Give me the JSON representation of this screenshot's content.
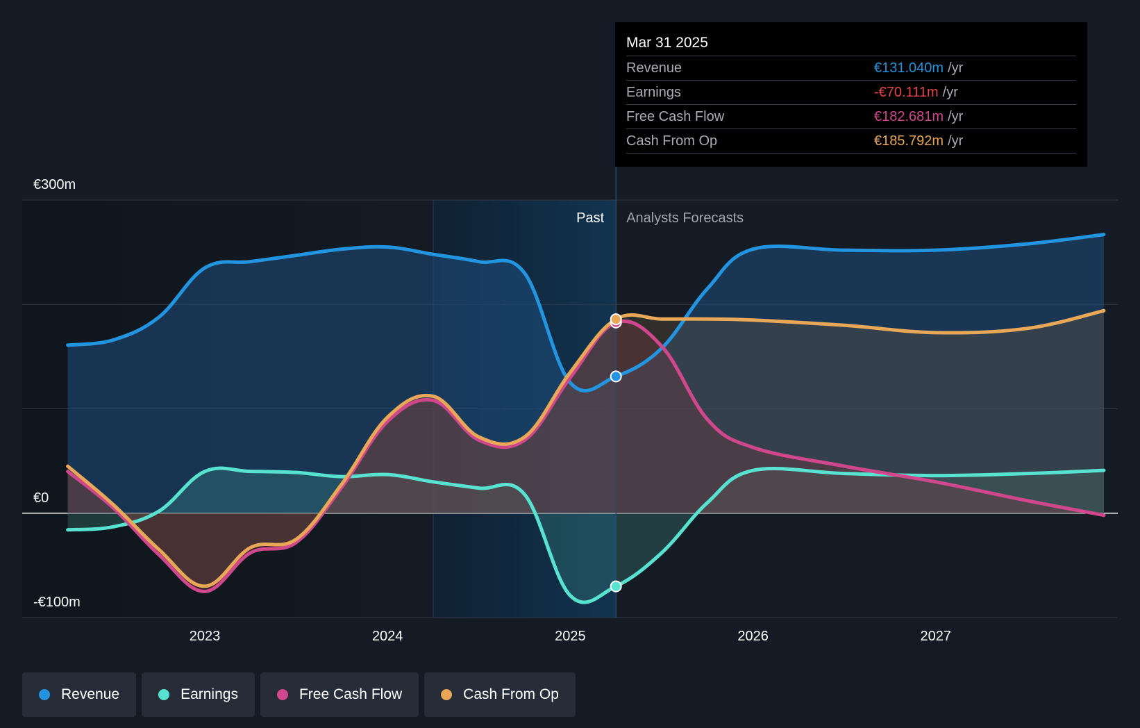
{
  "chart_data": {
    "type": "area",
    "title": "",
    "currency_prefix": "€",
    "y_tick_labels": [
      "€300m",
      "€0",
      "-€100m"
    ],
    "ylim": [
      -100,
      300
    ],
    "gridlines": [
      300,
      200,
      100,
      0,
      -100
    ],
    "x_range": [
      2022.25,
      2027.92
    ],
    "x_ticks": [
      2023,
      2024,
      2025,
      2026,
      2027
    ],
    "x_tick_labels": [
      "2023",
      "2024",
      "2025",
      "2026",
      "2027"
    ],
    "divider_x": 2025.25,
    "past_highlight_start": 2024.25,
    "past_label": "Past",
    "forecast_label": "Analysts Forecasts",
    "series": [
      {
        "name": "Revenue",
        "color": "#2394df",
        "x": [
          2022.25,
          2022.5,
          2022.75,
          2023.0,
          2023.25,
          2023.5,
          2023.75,
          2024.0,
          2024.25,
          2024.5,
          2024.75,
          2025.0,
          2025.25,
          2025.5,
          2025.75,
          2026.0,
          2026.5,
          2027.0,
          2027.5,
          2027.92
        ],
        "values": [
          161,
          166,
          188,
          235,
          241,
          247,
          253,
          255,
          248,
          241,
          230,
          125,
          131,
          158,
          215,
          253,
          252,
          252,
          258,
          267
        ]
      },
      {
        "name": "Earnings",
        "color": "#58e3d1",
        "x": [
          2022.25,
          2022.5,
          2022.75,
          2023.0,
          2023.25,
          2023.5,
          2023.75,
          2024.0,
          2024.25,
          2024.5,
          2024.75,
          2025.0,
          2025.25,
          2025.5,
          2025.75,
          2026.0,
          2026.5,
          2027.0,
          2027.5,
          2027.92
        ],
        "values": [
          -16,
          -13,
          2,
          40,
          40,
          39,
          35,
          37,
          30,
          24,
          18,
          -79,
          -70,
          -38,
          10,
          41,
          38,
          36,
          38,
          41
        ]
      },
      {
        "name": "Free Cash Flow",
        "color": "#d1478c",
        "x": [
          2022.25,
          2022.5,
          2022.75,
          2023.0,
          2023.25,
          2023.5,
          2023.75,
          2024.0,
          2024.25,
          2024.5,
          2024.75,
          2025.0,
          2025.25,
          2025.5,
          2025.75,
          2026.0,
          2026.5,
          2027.0,
          2027.5,
          2027.92
        ],
        "values": [
          40,
          5,
          -40,
          -75,
          -38,
          -28,
          25,
          88,
          108,
          70,
          70,
          130,
          182.681,
          160,
          90,
          63,
          45,
          30,
          12,
          -2
        ]
      },
      {
        "name": "Cash From Op",
        "color": "#e8a857",
        "x": [
          2022.25,
          2022.5,
          2022.75,
          2023.0,
          2023.25,
          2023.5,
          2023.75,
          2024.0,
          2024.25,
          2024.5,
          2024.75,
          2025.0,
          2025.25,
          2025.5,
          2025.75,
          2026.0,
          2026.5,
          2027.0,
          2027.5,
          2027.92
        ],
        "values": [
          45,
          8,
          -35,
          -70,
          -33,
          -25,
          28,
          92,
          112,
          73,
          73,
          135,
          185.792,
          186,
          186,
          185,
          180,
          173,
          177,
          194
        ]
      }
    ],
    "highlight_x": 2025.25,
    "highlight_points": [
      {
        "series": "Revenue",
        "value": 131.04
      },
      {
        "series": "Earnings",
        "value": -70.111
      },
      {
        "series": "Free Cash Flow",
        "value": 182.681
      },
      {
        "series": "Cash From Op",
        "value": 185.792
      }
    ]
  },
  "tooltip": {
    "date": "Mar 31 2025",
    "rows": [
      {
        "name": "Revenue",
        "value": "€131.040m",
        "unit": "/yr",
        "color": "#2394df"
      },
      {
        "name": "Earnings",
        "value": "-€70.111m",
        "unit": "/yr",
        "color": "#e8424a"
      },
      {
        "name": "Free Cash Flow",
        "value": "€182.681m",
        "unit": "/yr",
        "color": "#d1478c"
      },
      {
        "name": "Cash From Op",
        "value": "€185.792m",
        "unit": "/yr",
        "color": "#e8a857"
      }
    ]
  },
  "legend": {
    "items": [
      {
        "label": "Revenue",
        "color": "#2394df"
      },
      {
        "label": "Earnings",
        "color": "#58e3d1"
      },
      {
        "label": "Free Cash Flow",
        "color": "#d1478c"
      },
      {
        "label": "Cash From Op",
        "color": "#e8a857"
      }
    ]
  }
}
